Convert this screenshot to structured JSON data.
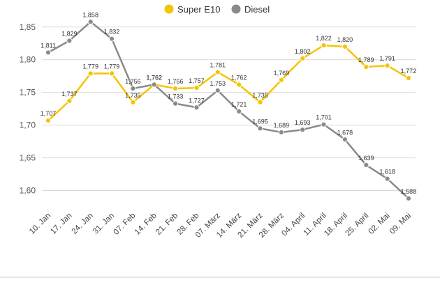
{
  "chart_data": {
    "type": "line",
    "categories": [
      "10. Jan",
      "17. Jan",
      "24. Jan",
      "31. Jan",
      "07. Feb",
      "14. Feb",
      "21. Feb",
      "28. Feb",
      "07. März",
      "14. März",
      "21. März",
      "28. März",
      "04. April",
      "11. April",
      "18. April",
      "25. April",
      "02. Mai",
      "09. Mai"
    ],
    "series": [
      {
        "name": "Super E10",
        "color": "#f5c400",
        "values": [
          1.707,
          1.737,
          1.779,
          1.779,
          1.735,
          1.762,
          1.756,
          1.757,
          1.781,
          1.762,
          1.735,
          1.769,
          1.802,
          1.822,
          1.82,
          1.789,
          1.791,
          1.772
        ],
        "labels": [
          "1,707",
          "1,737",
          "1,779",
          "1,779",
          "1,735",
          "1,762",
          "1,756",
          "1,757",
          "1,781",
          "1,762",
          "1,735",
          "1,769",
          "1,802",
          "1,822",
          "1,820",
          "1,789",
          "1,791",
          "1,772"
        ]
      },
      {
        "name": "Diesel",
        "color": "#8a8a8a",
        "values": [
          1.811,
          1.829,
          1.858,
          1.832,
          1.756,
          1.762,
          1.733,
          1.727,
          1.753,
          1.721,
          1.695,
          1.689,
          1.693,
          1.701,
          1.678,
          1.639,
          1.618,
          1.588
        ],
        "labels": [
          "1,811",
          "1,829",
          "1,858",
          "1,832",
          "1,756",
          "1,762",
          "1,733",
          "1,727",
          "1,753",
          "1,721",
          "1,695",
          "1,689",
          "1,693",
          "1,701",
          "1,678",
          "1,639",
          "1,618",
          "1,588"
        ]
      }
    ],
    "yticks": [
      1.6,
      1.65,
      1.7,
      1.75,
      1.8,
      1.85
    ],
    "ytick_labels": [
      "1,60",
      "1,65",
      "1,70",
      "1,75",
      "1,80",
      "1,85"
    ],
    "ylim": [
      1.575,
      1.87
    ],
    "grid": true,
    "legend_position": "top-center",
    "title": "",
    "xlabel": "",
    "ylabel": ""
  }
}
